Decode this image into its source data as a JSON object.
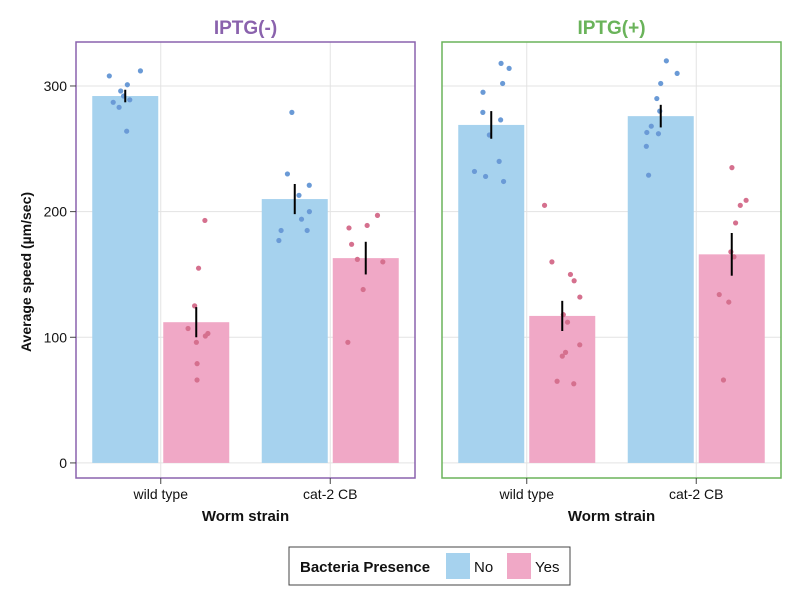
{
  "chart_data": {
    "type": "bar",
    "ylabel": "Average speed (µm/sec)",
    "xlabel": "Worm strain",
    "ylim": [
      -12,
      335
    ],
    "yticks": [
      0,
      100,
      200,
      300
    ],
    "grid": true,
    "legend": {
      "title": "Bacteria Presence",
      "placement": "bottom-center",
      "entries": [
        "No",
        "Yes"
      ]
    },
    "colors": {
      "No": "#a6d2ee",
      "Yes": "#f0a8c6",
      "No_points": "#6a9ad6",
      "Yes_points": "#d5708e",
      "panel_minus": "#8a62ad",
      "panel_plus": "#6ab35a",
      "error_bar": "#000000"
    },
    "panels": [
      {
        "title": "IPTG(-)",
        "categories": [
          "wild type",
          "cat-2 CB"
        ],
        "series": [
          {
            "name": "No",
            "values": [
              292,
              210
            ],
            "errors": [
              5,
              12
            ],
            "points": [
              [
                312,
                308,
                301,
                296,
                292,
                289,
                287,
                283,
                264
              ],
              [
                279,
                230,
                221,
                213,
                200,
                194,
                185,
                185,
                177
              ]
            ]
          },
          {
            "name": "Yes",
            "values": [
              112,
              163
            ],
            "errors": [
              12,
              13
            ],
            "points": [
              [
                193,
                155,
                125,
                107,
                103,
                101,
                96,
                79,
                66
              ],
              [
                197,
                189,
                187,
                174,
                162,
                160,
                138,
                96
              ]
            ]
          }
        ]
      },
      {
        "title": "IPTG(+)",
        "categories": [
          "wild type",
          "cat-2 CB"
        ],
        "series": [
          {
            "name": "No",
            "values": [
              269,
              276
            ],
            "errors": [
              11,
              9
            ],
            "points": [
              [
                318,
                314,
                302,
                295,
                279,
                273,
                261,
                240,
                232,
                228,
                224
              ],
              [
                320,
                310,
                302,
                290,
                280,
                268,
                263,
                262,
                252,
                229
              ]
            ]
          },
          {
            "name": "Yes",
            "values": [
              117,
              166
            ],
            "errors": [
              12,
              17
            ],
            "points": [
              [
                205,
                160,
                150,
                145,
                132,
                118,
                112,
                94,
                88,
                85,
                65,
                63
              ],
              [
                235,
                209,
                205,
                191,
                168,
                164,
                134,
                128,
                66
              ]
            ]
          }
        ]
      }
    ]
  }
}
